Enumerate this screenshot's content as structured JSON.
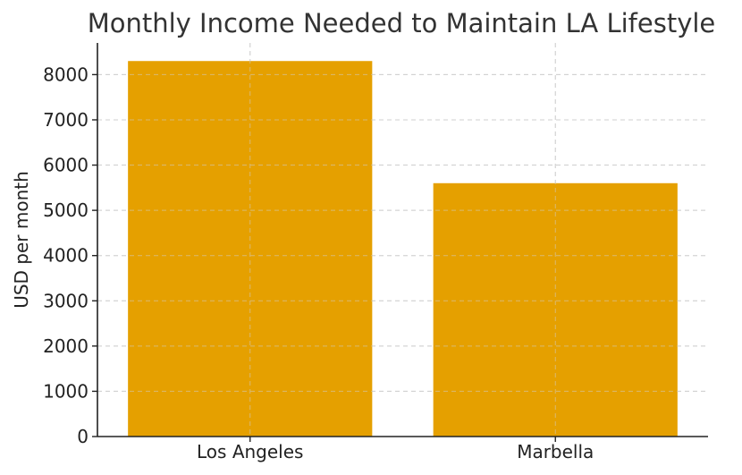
{
  "chart_data": {
    "type": "bar",
    "title": "Monthly Income Needed to Maintain LA Lifestyle",
    "xlabel": "",
    "ylabel": "USD per month",
    "categories": [
      "Los Angeles",
      "Marbella"
    ],
    "values": [
      8300,
      5600
    ],
    "ylim": [
      0,
      8700
    ],
    "yticks": [
      0,
      1000,
      2000,
      3000,
      4000,
      5000,
      6000,
      7000,
      8000
    ],
    "grid": true,
    "legend": "none",
    "bar_color": "#E5A000"
  }
}
